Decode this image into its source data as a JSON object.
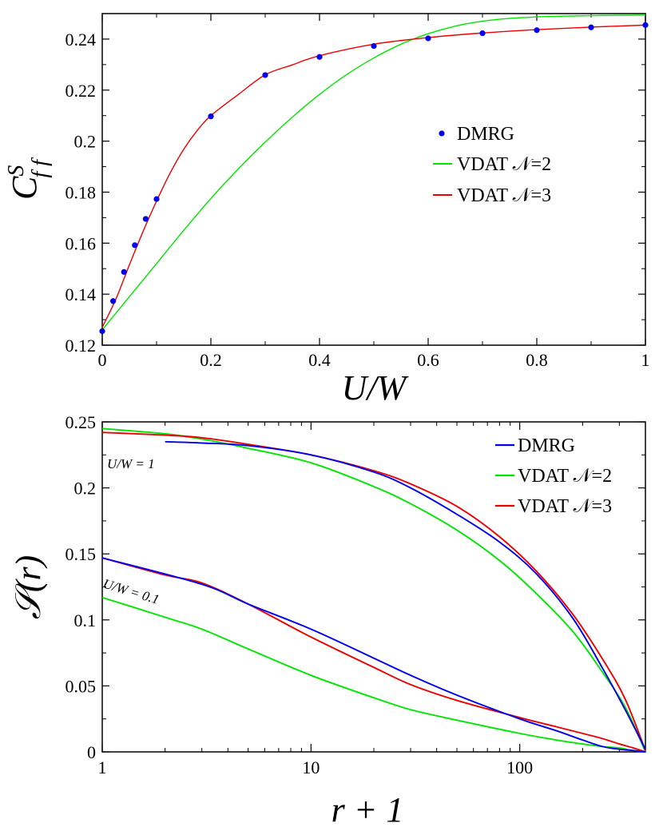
{
  "chart_data": [
    {
      "type": "scatter",
      "xlabel": "U/W",
      "ylabel": "C_ff^S",
      "xlim": [
        0,
        1
      ],
      "ylim": [
        0.12,
        0.25
      ],
      "x_ticks": [
        "0",
        "0.2",
        "0.4",
        "0.6",
        "0.8",
        "1"
      ],
      "x_tick_values": [
        0,
        0.2,
        0.4,
        0.6,
        0.8,
        1
      ],
      "y_ticks": [
        "0.12",
        "0.14",
        "0.16",
        "0.18",
        "0.2",
        "0.22",
        "0.24"
      ],
      "y_tick_values": [
        0.12,
        0.14,
        0.16,
        0.18,
        0.2,
        0.22,
        0.24
      ],
      "legend_position": "middle-right",
      "series": [
        {
          "name": "DMRG",
          "style": "points",
          "color": "#0000ee",
          "x": [
            0.0,
            0.02,
            0.04,
            0.06,
            0.08,
            0.1,
            0.2,
            0.3,
            0.4,
            0.5,
            0.6,
            0.7,
            0.8,
            0.9,
            1.0
          ],
          "y": [
            0.1255,
            0.1373,
            0.1487,
            0.1592,
            0.1695,
            0.1773,
            0.2097,
            0.2259,
            0.233,
            0.2373,
            0.2403,
            0.2423,
            0.2435,
            0.2446,
            0.2455
          ]
        },
        {
          "name": "VDAT 𝒩=2",
          "style": "line",
          "color": "#00e600",
          "x": [
            0.0,
            0.05,
            0.1,
            0.15,
            0.2,
            0.25,
            0.3,
            0.35,
            0.4,
            0.45,
            0.5,
            0.55,
            0.6,
            0.65,
            0.7,
            0.75,
            0.8,
            0.85,
            0.9,
            0.95,
            1.0
          ],
          "y": [
            0.126,
            0.139,
            0.152,
            0.165,
            0.1775,
            0.189,
            0.1996,
            0.2094,
            0.2183,
            0.2261,
            0.2326,
            0.238,
            0.2421,
            0.2451,
            0.247,
            0.2481,
            0.2487,
            0.249,
            0.2492,
            0.2493,
            0.2494
          ]
        },
        {
          "name": "VDAT 𝒩=3",
          "style": "line",
          "color": "#ee0000",
          "x": [
            0.0,
            0.025,
            0.05,
            0.075,
            0.1,
            0.125,
            0.15,
            0.175,
            0.2,
            0.25,
            0.3,
            0.35,
            0.4,
            0.5,
            0.6,
            0.7,
            0.8,
            0.9,
            1.0
          ],
          "y": [
            0.127,
            0.138,
            0.1515,
            0.1645,
            0.1765,
            0.1875,
            0.1968,
            0.2042,
            0.21,
            0.2182,
            0.226,
            0.2299,
            0.2335,
            0.238,
            0.2406,
            0.2424,
            0.2437,
            0.2447,
            0.2455
          ]
        }
      ]
    },
    {
      "type": "line",
      "xlabel": "r + 1",
      "ylabel": "𝒮(r)",
      "xscale": "log",
      "xlim": [
        1,
        400
      ],
      "ylim": [
        0,
        0.25
      ],
      "x_ticks": [
        "1",
        "10",
        "100"
      ],
      "x_tick_values": [
        1,
        10,
        100
      ],
      "y_ticks": [
        "0",
        "0.05",
        "0.1",
        "0.15",
        "0.2",
        "0.25"
      ],
      "y_tick_values": [
        0,
        0.05,
        0.1,
        0.15,
        0.2,
        0.25
      ],
      "legend_position": "top-right",
      "annotations": [
        {
          "text": "U/W = 1"
        },
        {
          "text": "U/W = 0.1"
        }
      ],
      "series": [
        {
          "name": "DMRG",
          "color": "#0000ee",
          "group": "U/W = 1",
          "x": [
            2,
            3,
            5,
            10,
            20,
            30,
            50,
            80,
            120,
            180,
            250,
            320,
            400
          ],
          "y": [
            0.235,
            0.234,
            0.232,
            0.225,
            0.212,
            0.2,
            0.18,
            0.159,
            0.135,
            0.101,
            0.063,
            0.032,
            0.002
          ]
        },
        {
          "name": "DMRG",
          "color": "#0000ee",
          "group": "U/W = 0.1",
          "x": [
            1,
            3,
            5,
            10,
            20,
            30,
            50,
            100,
            150,
            200,
            250,
            300,
            350,
            400
          ],
          "y": [
            0.147,
            0.127,
            0.112,
            0.093,
            0.071,
            0.058,
            0.043,
            0.025,
            0.016,
            0.009,
            0.004,
            0.002,
            0.001,
            0.0
          ]
        },
        {
          "name": "VDAT 𝒩=2",
          "color": "#00e600",
          "group": "U/W = 1",
          "x": [
            1,
            2,
            3,
            5,
            10,
            20,
            30,
            50,
            80,
            120,
            180,
            250,
            320,
            400
          ],
          "y": [
            0.245,
            0.241,
            0.237,
            0.23,
            0.219,
            0.201,
            0.188,
            0.168,
            0.145,
            0.12,
            0.091,
            0.06,
            0.034,
            0.0
          ]
        },
        {
          "name": "VDAT 𝒩=2",
          "color": "#00e600",
          "group": "U/W = 0.1",
          "x": [
            1,
            2,
            3,
            5,
            10,
            20,
            30,
            50,
            100,
            150,
            200,
            250,
            300,
            350,
            400
          ],
          "y": [
            0.117,
            0.102,
            0.093,
            0.078,
            0.058,
            0.041,
            0.032,
            0.024,
            0.014,
            0.009,
            0.006,
            0.004,
            0.003,
            0.001,
            0.0
          ]
        },
        {
          "name": "VDAT 𝒩=3",
          "color": "#ee0000",
          "group": "U/W = 1",
          "x": [
            1,
            2,
            3,
            5,
            10,
            20,
            30,
            50,
            80,
            120,
            180,
            250,
            320,
            400
          ],
          "y": [
            0.242,
            0.24,
            0.238,
            0.233,
            0.225,
            0.213,
            0.203,
            0.186,
            0.163,
            0.137,
            0.104,
            0.07,
            0.04,
            0.001
          ]
        },
        {
          "name": "VDAT 𝒩=3",
          "color": "#ee0000",
          "group": "U/W = 0.1",
          "x": [
            1,
            2,
            3,
            5,
            10,
            20,
            30,
            50,
            100,
            150,
            200,
            250,
            300,
            350,
            400
          ],
          "y": [
            0.147,
            0.134,
            0.128,
            0.112,
            0.087,
            0.064,
            0.051,
            0.039,
            0.026,
            0.019,
            0.014,
            0.01,
            0.006,
            0.003,
            0.0
          ]
        }
      ]
    }
  ]
}
